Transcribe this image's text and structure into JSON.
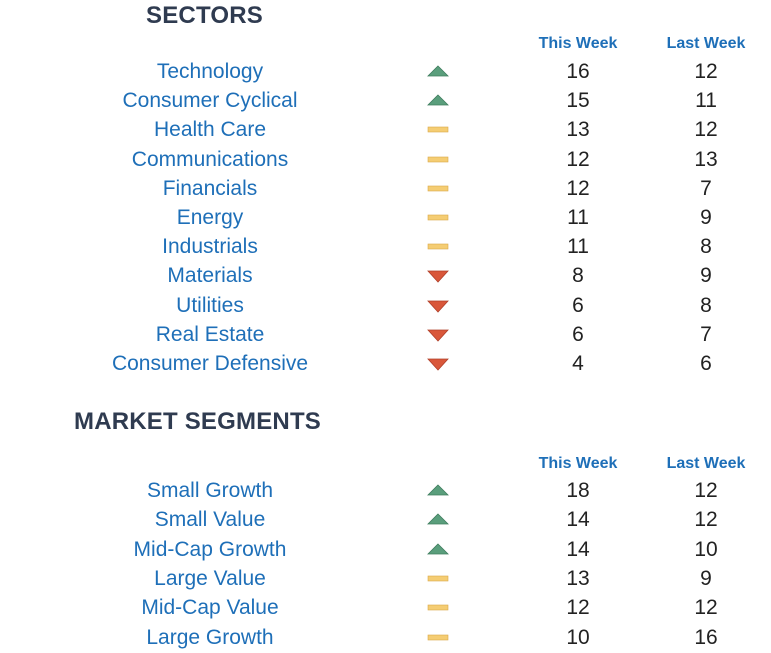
{
  "colors": {
    "up": "#5a9e7c",
    "flat": "#f5cd73",
    "down": "#d9573a",
    "title": "#2f3b50",
    "label": "#1e6fb8"
  },
  "sectors": {
    "title": "SECTORS",
    "this_week_label": "This Week",
    "last_week_label": "Last Week",
    "rows": [
      {
        "name": "Technology",
        "trend": "up",
        "this_week": "16",
        "last_week": "12"
      },
      {
        "name": "Consumer Cyclical",
        "trend": "up",
        "this_week": "15",
        "last_week": "11"
      },
      {
        "name": "Health Care",
        "trend": "flat",
        "this_week": "13",
        "last_week": "12"
      },
      {
        "name": "Communications",
        "trend": "flat",
        "this_week": "12",
        "last_week": "13"
      },
      {
        "name": "Financials",
        "trend": "flat",
        "this_week": "12",
        "last_week": "7"
      },
      {
        "name": "Energy",
        "trend": "flat",
        "this_week": "11",
        "last_week": "9"
      },
      {
        "name": "Industrials",
        "trend": "flat",
        "this_week": "11",
        "last_week": "8"
      },
      {
        "name": "Materials",
        "trend": "down",
        "this_week": "8",
        "last_week": "9"
      },
      {
        "name": "Utilities",
        "trend": "down",
        "this_week": "6",
        "last_week": "8"
      },
      {
        "name": "Real Estate",
        "trend": "down",
        "this_week": "6",
        "last_week": "7"
      },
      {
        "name": "Consumer Defensive",
        "trend": "down",
        "this_week": "4",
        "last_week": "6"
      }
    ]
  },
  "segments": {
    "title": "MARKET SEGMENTS",
    "this_week_label": "This Week",
    "last_week_label": "Last Week",
    "rows": [
      {
        "name": "Small Growth",
        "trend": "up",
        "this_week": "18",
        "last_week": "12"
      },
      {
        "name": "Small Value",
        "trend": "up",
        "this_week": "14",
        "last_week": "12"
      },
      {
        "name": "Mid-Cap Growth",
        "trend": "up",
        "this_week": "14",
        "last_week": "10"
      },
      {
        "name": "Large Value",
        "trend": "flat",
        "this_week": "13",
        "last_week": "9"
      },
      {
        "name": "Mid-Cap Value",
        "trend": "flat",
        "this_week": "12",
        "last_week": "12"
      },
      {
        "name": "Large Growth",
        "trend": "flat",
        "this_week": "10",
        "last_week": "16"
      }
    ]
  }
}
